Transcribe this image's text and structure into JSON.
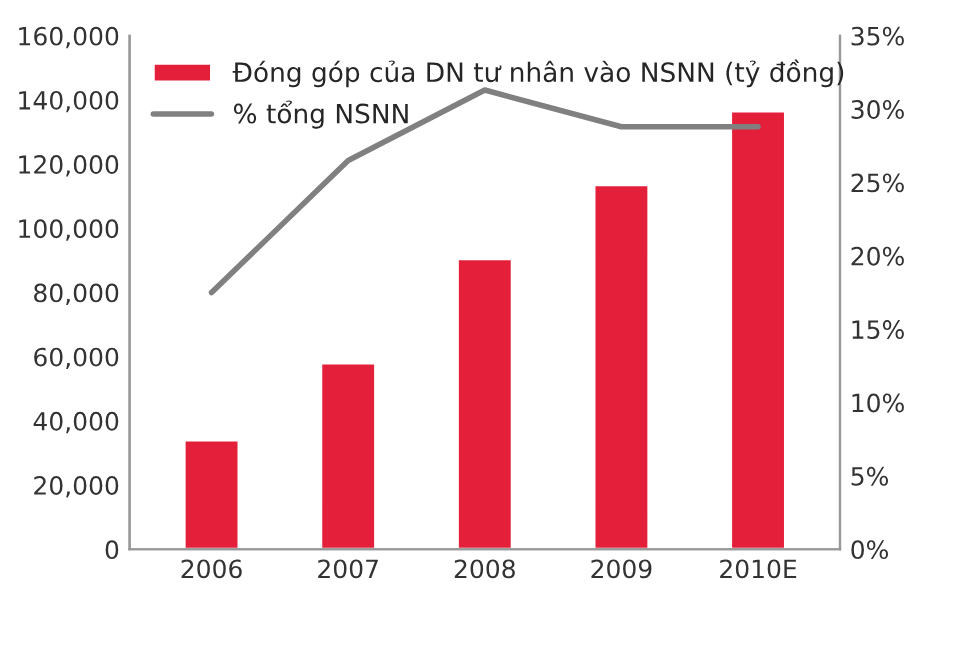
{
  "chart_data": {
    "type": "bar",
    "categories": [
      "2006",
      "2007",
      "2008",
      "2009",
      "2010E"
    ],
    "series": [
      {
        "name": "Đóng góp của DN tư nhân vào NSNN (tỷ đồng)",
        "color": "#e41f3a",
        "values": [
          34000,
          58000,
          90500,
          113500,
          136500
        ]
      },
      {
        "name": "% tổng NSNN",
        "type": "line",
        "axis": "y2",
        "color": "#808080",
        "values": [
          17.5,
          26.5,
          31.3,
          28.8,
          28.8
        ]
      }
    ],
    "ylim": [
      0,
      160000
    ],
    "yticks": [
      {
        "value": 0,
        "label": "0"
      },
      {
        "value": 20000,
        "label": "20,000"
      },
      {
        "value": 40000,
        "label": "40,000"
      },
      {
        "value": 60000,
        "label": "60,000"
      },
      {
        "value": 80000,
        "label": "80,000"
      },
      {
        "value": 100000,
        "label": "100,000"
      },
      {
        "value": 120000,
        "label": "120,000"
      },
      {
        "value": 140000,
        "label": "140,000"
      },
      {
        "value": 160000,
        "label": "160,000"
      }
    ],
    "y2lim": [
      0,
      35
    ],
    "y2ticks": [
      {
        "value": 0,
        "label": "0%"
      },
      {
        "value": 5,
        "label": "5%"
      },
      {
        "value": 10,
        "label": "10%"
      },
      {
        "value": 15,
        "label": "15%"
      },
      {
        "value": 20,
        "label": "20%"
      },
      {
        "value": 25,
        "label": "25%"
      },
      {
        "value": 30,
        "label": "30%"
      },
      {
        "value": 35,
        "label": "35%"
      }
    ],
    "legend": "top left",
    "grid": false,
    "marker": "none",
    "line_style": "solid"
  }
}
